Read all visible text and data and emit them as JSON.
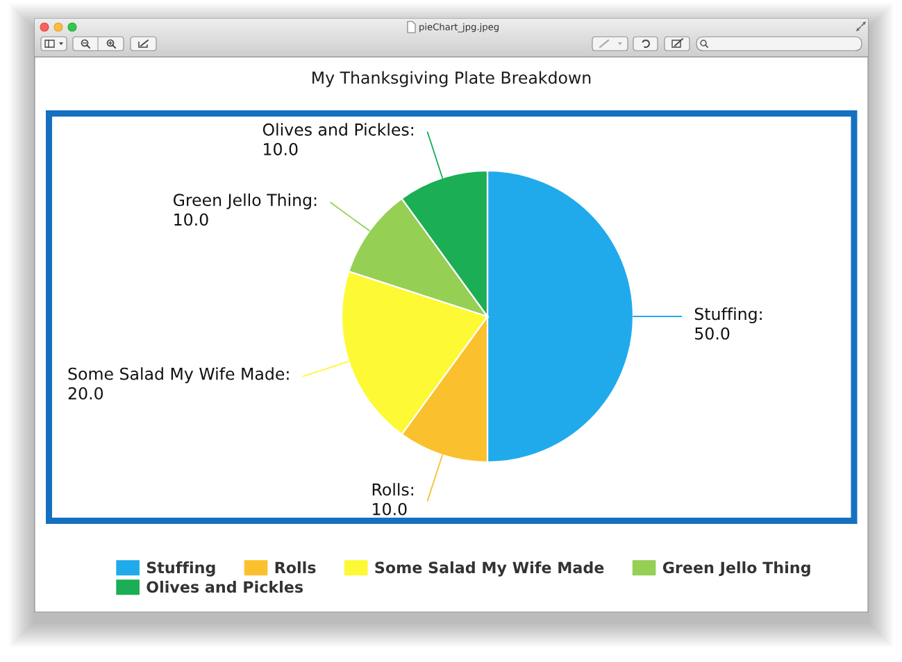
{
  "chart_data": {
    "type": "pie",
    "title": "My Thanksgiving Plate Breakdown",
    "categories": [
      "Stuffing",
      "Rolls",
      "Some Salad My Wife Made",
      "Green Jello Thing",
      "Olives and Pickles"
    ],
    "values": [
      50,
      10,
      20,
      10,
      10
    ],
    "value_labels": [
      "Stuffing:\n50.0",
      "Rolls:\n10.0",
      "Some Salad My Wife Made:\n20.0",
      "Green Jello Thing:\n10.0",
      "Olives and Pickles:\n10.0"
    ],
    "colors": [
      "#20aaec",
      "#fbc02d",
      "#fdf935",
      "#95cf54",
      "#1bae54"
    ],
    "legend": "bottom",
    "annotations": [
      "pieChart_jpg.jpeg"
    ]
  }
}
